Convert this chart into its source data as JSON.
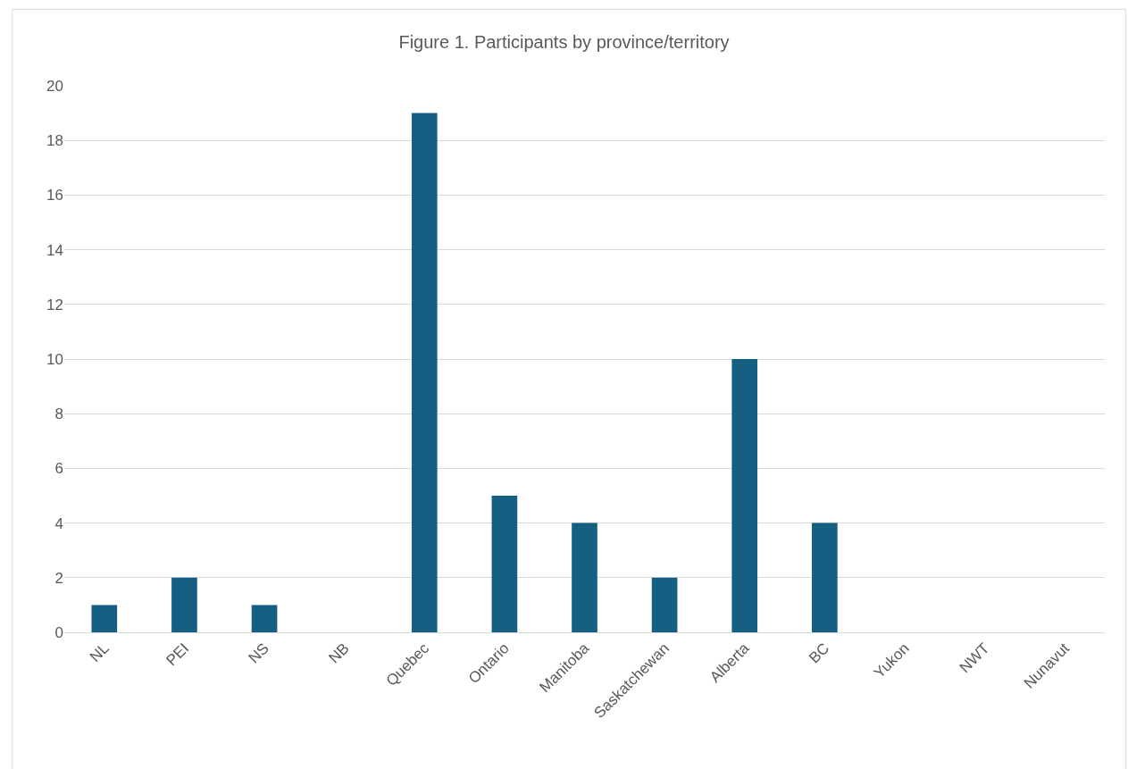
{
  "chart_data": {
    "type": "bar",
    "title": "Figure 1. Participants by province/territory",
    "categories": [
      "NL",
      "PEI",
      "NS",
      "NB",
      "Quebec",
      "Ontario",
      "Manitoba",
      "Saskatchewan",
      "Alberta",
      "BC",
      "Yukon",
      "NWT",
      "Nunavut"
    ],
    "values": [
      1,
      2,
      1,
      0,
      19,
      5,
      4,
      2,
      10,
      4,
      0,
      0,
      0
    ],
    "color": "#155f82",
    "ylim": [
      0,
      20
    ],
    "yticks": [
      0,
      2,
      4,
      6,
      8,
      10,
      12,
      14,
      16,
      18,
      20
    ],
    "grid": "y"
  }
}
